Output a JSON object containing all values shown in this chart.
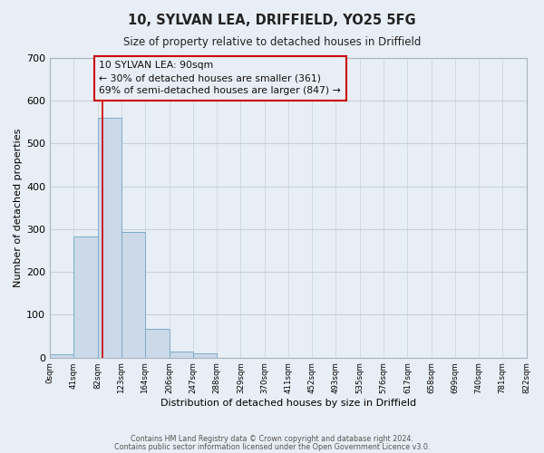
{
  "title": "10, SYLVAN LEA, DRIFFIELD, YO25 5FG",
  "subtitle": "Size of property relative to detached houses in Driffield",
  "xlabel": "Distribution of detached houses by size in Driffield",
  "ylabel": "Number of detached properties",
  "bar_heights": [
    8,
    282,
    560,
    293,
    68,
    15,
    9,
    0,
    0,
    0,
    0,
    0,
    0,
    0,
    0,
    0,
    0,
    0,
    0,
    0
  ],
  "bin_edges": [
    0,
    41,
    82,
    123,
    164,
    206,
    247,
    288,
    329,
    370,
    411,
    452,
    493,
    535,
    576,
    617,
    658,
    699,
    740,
    781,
    822
  ],
  "tick_labels": [
    "0sqm",
    "41sqm",
    "82sqm",
    "123sqm",
    "164sqm",
    "206sqm",
    "247sqm",
    "288sqm",
    "329sqm",
    "370sqm",
    "411sqm",
    "452sqm",
    "493sqm",
    "535sqm",
    "576sqm",
    "617sqm",
    "658sqm",
    "699sqm",
    "740sqm",
    "781sqm",
    "822sqm"
  ],
  "bar_color": "#ccd9e8",
  "bar_edge_color": "#7aaec8",
  "grid_color": "#c8d0da",
  "background_color": "#e8eef5",
  "vline_x": 90,
  "vline_color": "#cc0000",
  "annotation_line1": "10 SYLVAN LEA: 90sqm",
  "annotation_line2": "← 30% of detached houses are smaller (361)",
  "annotation_line3": "69% of semi-detached houses are larger (847) →",
  "annotation_box_edgecolor": "#cc0000",
  "ylim": [
    0,
    700
  ],
  "yticks": [
    0,
    100,
    200,
    300,
    400,
    500,
    600,
    700
  ],
  "footer_line1": "Contains HM Land Registry data © Crown copyright and database right 2024.",
  "footer_line2": "Contains public sector information licensed under the Open Government Licence v3.0."
}
